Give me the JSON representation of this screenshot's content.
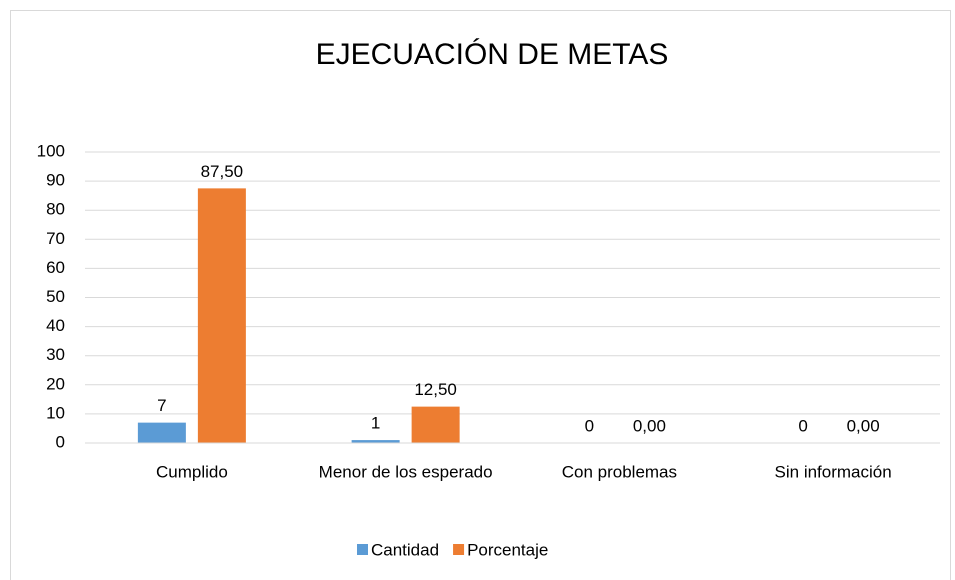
{
  "chart_data": {
    "type": "bar",
    "title": "EJECUACIÓN DE METAS",
    "categories": [
      "Cumplido",
      "Menor de los esperado",
      "Con problemas",
      "Sin información"
    ],
    "series": [
      {
        "name": "Cantidad",
        "color": "#5b9bd5",
        "values": [
          7,
          1,
          0,
          0
        ]
      },
      {
        "name": "Porcentaje",
        "color": "#ed7d31",
        "values": [
          87.5,
          12.5,
          0,
          0
        ],
        "value_labels": [
          "87,50",
          "12,50",
          "0,00",
          "0,00"
        ]
      }
    ],
    "ylim": [
      0,
      100
    ],
    "yticks": [
      0,
      10,
      20,
      30,
      40,
      50,
      60,
      70,
      80,
      90,
      100
    ],
    "grid": true,
    "legend": "bottom"
  }
}
